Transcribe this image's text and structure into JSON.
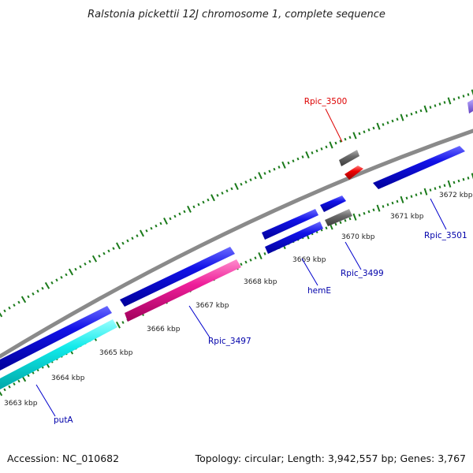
{
  "title": "Ralstonia pickettii 12J chromosome 1, complete sequence",
  "footer": {
    "accession": "Accession: NC_010682",
    "summary": "Topology: circular; Length: 3,942,557 bp; Genes: 3,767"
  },
  "kbp_labels": [
    "3663 kbp",
    "3664 kbp",
    "3665 kbp",
    "3666 kbp",
    "3667 kbp",
    "3668 kbp",
    "3669 kbp",
    "3670 kbp",
    "3671 kbp",
    "3672 kbp"
  ],
  "gene_labels": [
    {
      "text": "Rpic_3500",
      "color": "#dd0000"
    },
    {
      "text": "putA",
      "color": "#0000aa"
    },
    {
      "text": "Rpic_3497",
      "color": "#0000aa"
    },
    {
      "text": "hemE",
      "color": "#0000aa"
    },
    {
      "text": "Rpic_3499",
      "color": "#0000aa"
    },
    {
      "text": "Rpic_3501",
      "color": "#0000aa"
    }
  ],
  "colors": {
    "backbone": "#8a8a8a",
    "cds": "#1010e0",
    "trna_pseudo": "#6b6b6b",
    "highlight": "#ee0000",
    "cyan_feature": "#10e8e8",
    "magenta_feature": "#ee1e9a",
    "purple_feature": "#8060e0",
    "ticks": "#1a7a1a"
  }
}
